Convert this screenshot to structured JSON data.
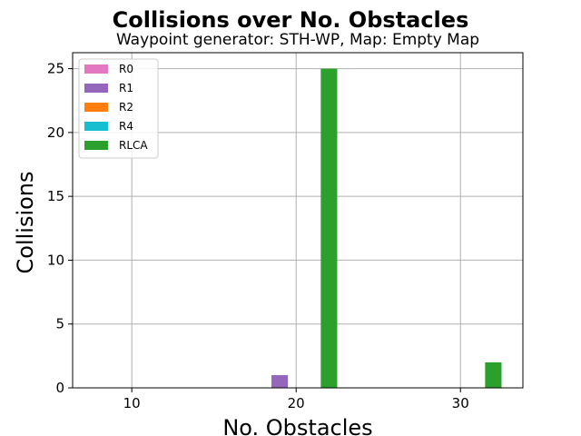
{
  "chart_data": {
    "type": "bar",
    "title": "Collisions over No. Obstacles",
    "subtitle": "Waypoint generator: STH-WP, Map: Empty Map",
    "xlabel": "No. Obstacles",
    "ylabel": "Collisions",
    "categories": [
      10,
      20,
      30
    ],
    "xticks": [
      "10",
      "20",
      "30"
    ],
    "yticks": [
      "0",
      "5",
      "10",
      "15",
      "20",
      "25"
    ],
    "xlim": [
      6.4,
      33.8
    ],
    "ylim": [
      0,
      26.25
    ],
    "grid": true,
    "legend_position": "top-left",
    "series": [
      {
        "name": "R0",
        "color": "#e377c2",
        "values": [
          0,
          0,
          0
        ]
      },
      {
        "name": "R1",
        "color": "#9467bd",
        "values": [
          0,
          1,
          0
        ]
      },
      {
        "name": "R2",
        "color": "#ff7f0e",
        "values": [
          0,
          0,
          0
        ]
      },
      {
        "name": "R4",
        "color": "#17becf",
        "values": [
          0,
          0,
          0
        ]
      },
      {
        "name": "RLCA",
        "color": "#2ca02c",
        "values": [
          0,
          25,
          2
        ]
      }
    ]
  }
}
